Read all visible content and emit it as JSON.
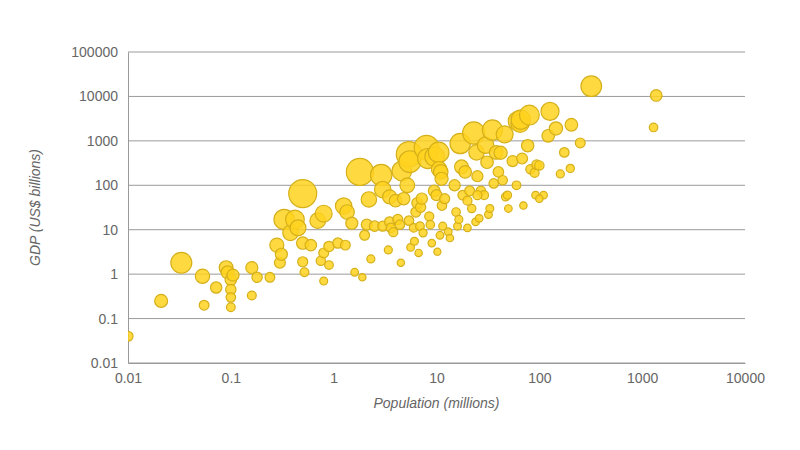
{
  "chart_data": {
    "type": "scatter",
    "log": true,
    "grid": true,
    "color": "#ffd21f",
    "x_label": "Population (millions)",
    "y_label": "GDP (US$ billions)",
    "xlim": [
      0.01,
      10000
    ],
    "xticks": [
      0.01,
      0.1,
      1,
      10,
      100,
      1000,
      10000
    ],
    "ylim": [
      0.01,
      100000
    ],
    "yticks": [
      0.01,
      0.1,
      1,
      10,
      100,
      1000,
      10000,
      100000
    ],
    "x": [
      0.01,
      0.021,
      0.033,
      0.053,
      0.055,
      0.072,
      0.09,
      0.093,
      0.1,
      0.1,
      0.1,
      0.1,
      0.105,
      0.16,
      0.16,
      0.18,
      0.24,
      0.28,
      0.3,
      0.31,
      0.33,
      0.38,
      0.42,
      0.45,
      0.5,
      0.5,
      0.5,
      0.52,
      0.6,
      0.7,
      0.75,
      0.8,
      0.8,
      0.8,
      0.9,
      0.9,
      1.1,
      1.25,
      1.3,
      1.35,
      1.5,
      1.6,
      1.8,
      1.9,
      2,
      2.1,
      2.2,
      2.3,
      2.5,
      2.9,
      3,
      3,
      3.4,
      3.5,
      3.5,
      3.6,
      3.8,
      4,
      4.2,
      4.4,
      4.5,
      4.6,
      4.8,
      5.2,
      5.4,
      5.5,
      5.4,
      5.6,
      6,
      6.1,
      6.3,
      6.5,
      6.7,
      6.9,
      7,
      7.2,
      7.4,
      8,
      8.2,
      8.5,
      8.7,
      9,
      9.5,
      9.6,
      10,
      10.2,
      10.5,
      10.6,
      10.8,
      11,
      11.2,
      11.3,
      11.5,
      12,
      13,
      13.5,
      15,
      15.5,
      16,
      16.5,
      17,
      17.5,
      18,
      19,
      20,
      21,
      22,
      23,
      24,
      24.5,
      25,
      26,
      27,
      29,
      30,
      31,
      32,
      33,
      35,
      36,
      38,
      40,
      42,
      44,
      46,
      47,
      49,
      50,
      55,
      62,
      65,
      66,
      68,
      70,
      77,
      80,
      82,
      90,
      92,
      94,
      100,
      122,
      127,
      145,
      160,
      175,
      200,
      205,
      250,
      320,
      1290,
      1370,
      110,
      100,
      60,
      25,
      20
    ],
    "values": [
      0.04,
      0.25,
      1.8,
      0.9,
      0.2,
      0.5,
      1.4,
      1.1,
      0.75,
      0.45,
      0.3,
      0.18,
      0.95,
      1.4,
      0.33,
      0.85,
      0.85,
      4.5,
      1.8,
      2.8,
      17,
      8.5,
      17,
      11,
      65,
      5,
      1.9,
      1.1,
      4.5,
      16,
      2,
      23,
      0.7,
      3,
      1.6,
      4.2,
      5,
      34,
      4.5,
      25,
      14,
      1.1,
      200,
      0.85,
      7.5,
      13,
      48,
      2.2,
      12,
      170,
      12,
      80,
      3.5,
      55,
      15,
      11,
      8.8,
      45,
      17,
      13,
      1.8,
      210,
      50,
      100,
      500,
      340,
      16,
      4,
      11,
      5.5,
      25,
      40,
      3,
      12,
      32,
      50,
      8.5,
      700,
      400,
      20,
      13,
      5,
      75,
      440,
      60,
      3.2,
      550,
      230,
      7.5,
      200,
      140,
      35,
      12,
      50,
      9,
      6.5,
      100,
      25,
      12,
      17,
      870,
      260,
      60,
      200,
      11,
      75,
      30,
      1500,
      15,
      550,
      160,
      18,
      75,
      60,
      800,
      330,
      22,
      30,
      1750,
      110,
      550,
      200,
      540,
      130,
      1400,
      55,
      60,
      30,
      350,
      2800,
      2500,
      3000,
      400,
      35,
      780,
      3800,
      230,
      190,
      60,
      290,
      280,
      1300,
      4600,
      1900,
      180,
      550,
      240,
      2300,
      900,
      17000,
      2000,
      10500,
      60,
      50,
      100,
      60,
      45
    ],
    "sizes": [
      4,
      12,
      55,
      17,
      3.6,
      7,
      15,
      12,
      7.5,
      4.5,
      3,
      1.8,
      9,
      9,
      2,
      4.7,
      3.5,
      16,
      6,
      9,
      51,
      22,
      40,
      24,
      120,
      10,
      4,
      2,
      7.5,
      23,
      2.7,
      29,
      0.9,
      3.7,
      1.8,
      4.7,
      4.5,
      27,
      3.5,
      18,
      9,
      0.7,
      111,
      0.45,
      3.7,
      6,
      22,
      1,
      5,
      59,
      4,
      27,
      1,
      16,
      4.3,
      3,
      2.3,
      11,
      4,
      3,
      0.4,
      46,
      10,
      19,
      93,
      62,
      3,
      0.7,
      1.8,
      0.9,
      4,
      6,
      0.45,
      1.7,
      4.6,
      7,
      1.1,
      87,
      49,
      2.4,
      1.5,
      0.55,
      8,
      46,
      6,
      0.3,
      52,
      22,
      0.7,
      18,
      12.5,
      3,
      1,
      4,
      0.7,
      0.5,
      6.7,
      1.6,
      0.75,
      1,
      51,
      15,
      3.3,
      10.5,
      0.55,
      3.6,
      1.4,
      65,
      0.6,
      22,
      6.4,
      0.7,
      2.8,
      2,
      27,
      10.6,
      0.7,
      0.9,
      50,
      3,
      14.5,
      5,
      13,
      3,
      30,
      1.2,
      1.2,
      0.6,
      6.4,
      45,
      38,
      45,
      5.9,
      0.5,
      10,
      47,
      2.8,
      2.1,
      0.65,
      3.1,
      2.8,
      10.7,
      36,
      13,
      1.1,
      3.1,
      1.2,
      11,
      3.6,
      53,
      1.6,
      7.7,
      0.55,
      0.5,
      1.7,
      2.4,
      2.2
    ]
  }
}
